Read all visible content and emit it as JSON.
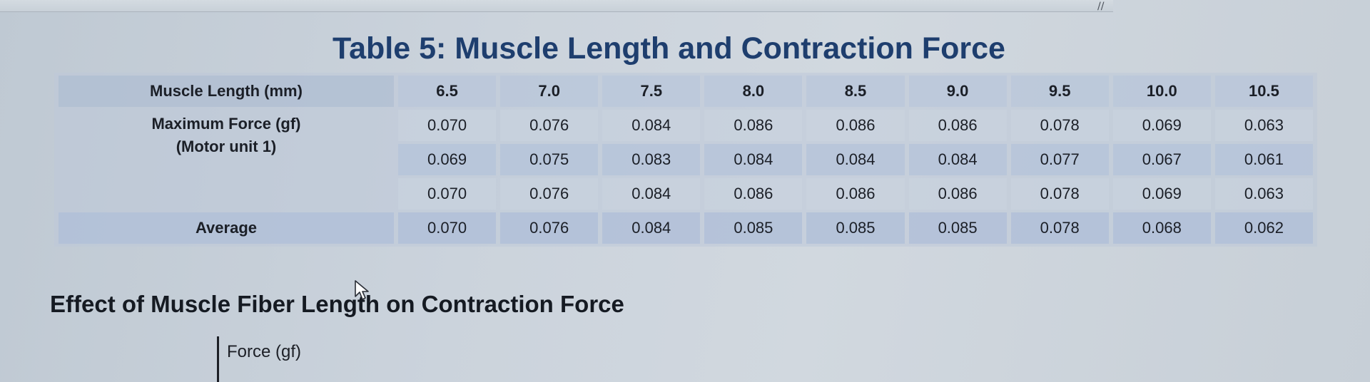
{
  "table": {
    "title": "Table 5: Muscle Length and Contraction Force",
    "header_label": "Muscle Length (mm)",
    "lengths": [
      "6.5",
      "7.0",
      "7.5",
      "8.0",
      "8.5",
      "9.0",
      "9.5",
      "10.0",
      "10.5"
    ],
    "force_label_line1": "Maximum Force (gf)",
    "force_label_line2": "(Motor unit 1)",
    "trials": [
      [
        "0.070",
        "0.076",
        "0.084",
        "0.086",
        "0.086",
        "0.086",
        "0.078",
        "0.069",
        "0.063"
      ],
      [
        "0.069",
        "0.075",
        "0.083",
        "0.084",
        "0.084",
        "0.084",
        "0.077",
        "0.067",
        "0.061"
      ],
      [
        "0.070",
        "0.076",
        "0.084",
        "0.086",
        "0.086",
        "0.086",
        "0.078",
        "0.069",
        "0.063"
      ]
    ],
    "average_label": "Average",
    "averages": [
      "0.070",
      "0.076",
      "0.084",
      "0.085",
      "0.085",
      "0.085",
      "0.078",
      "0.068",
      "0.062"
    ]
  },
  "section": {
    "heading": "Effect of Muscle Fiber Length on Contraction Force"
  },
  "graph": {
    "y_axis_label": "Force (gf)"
  }
}
